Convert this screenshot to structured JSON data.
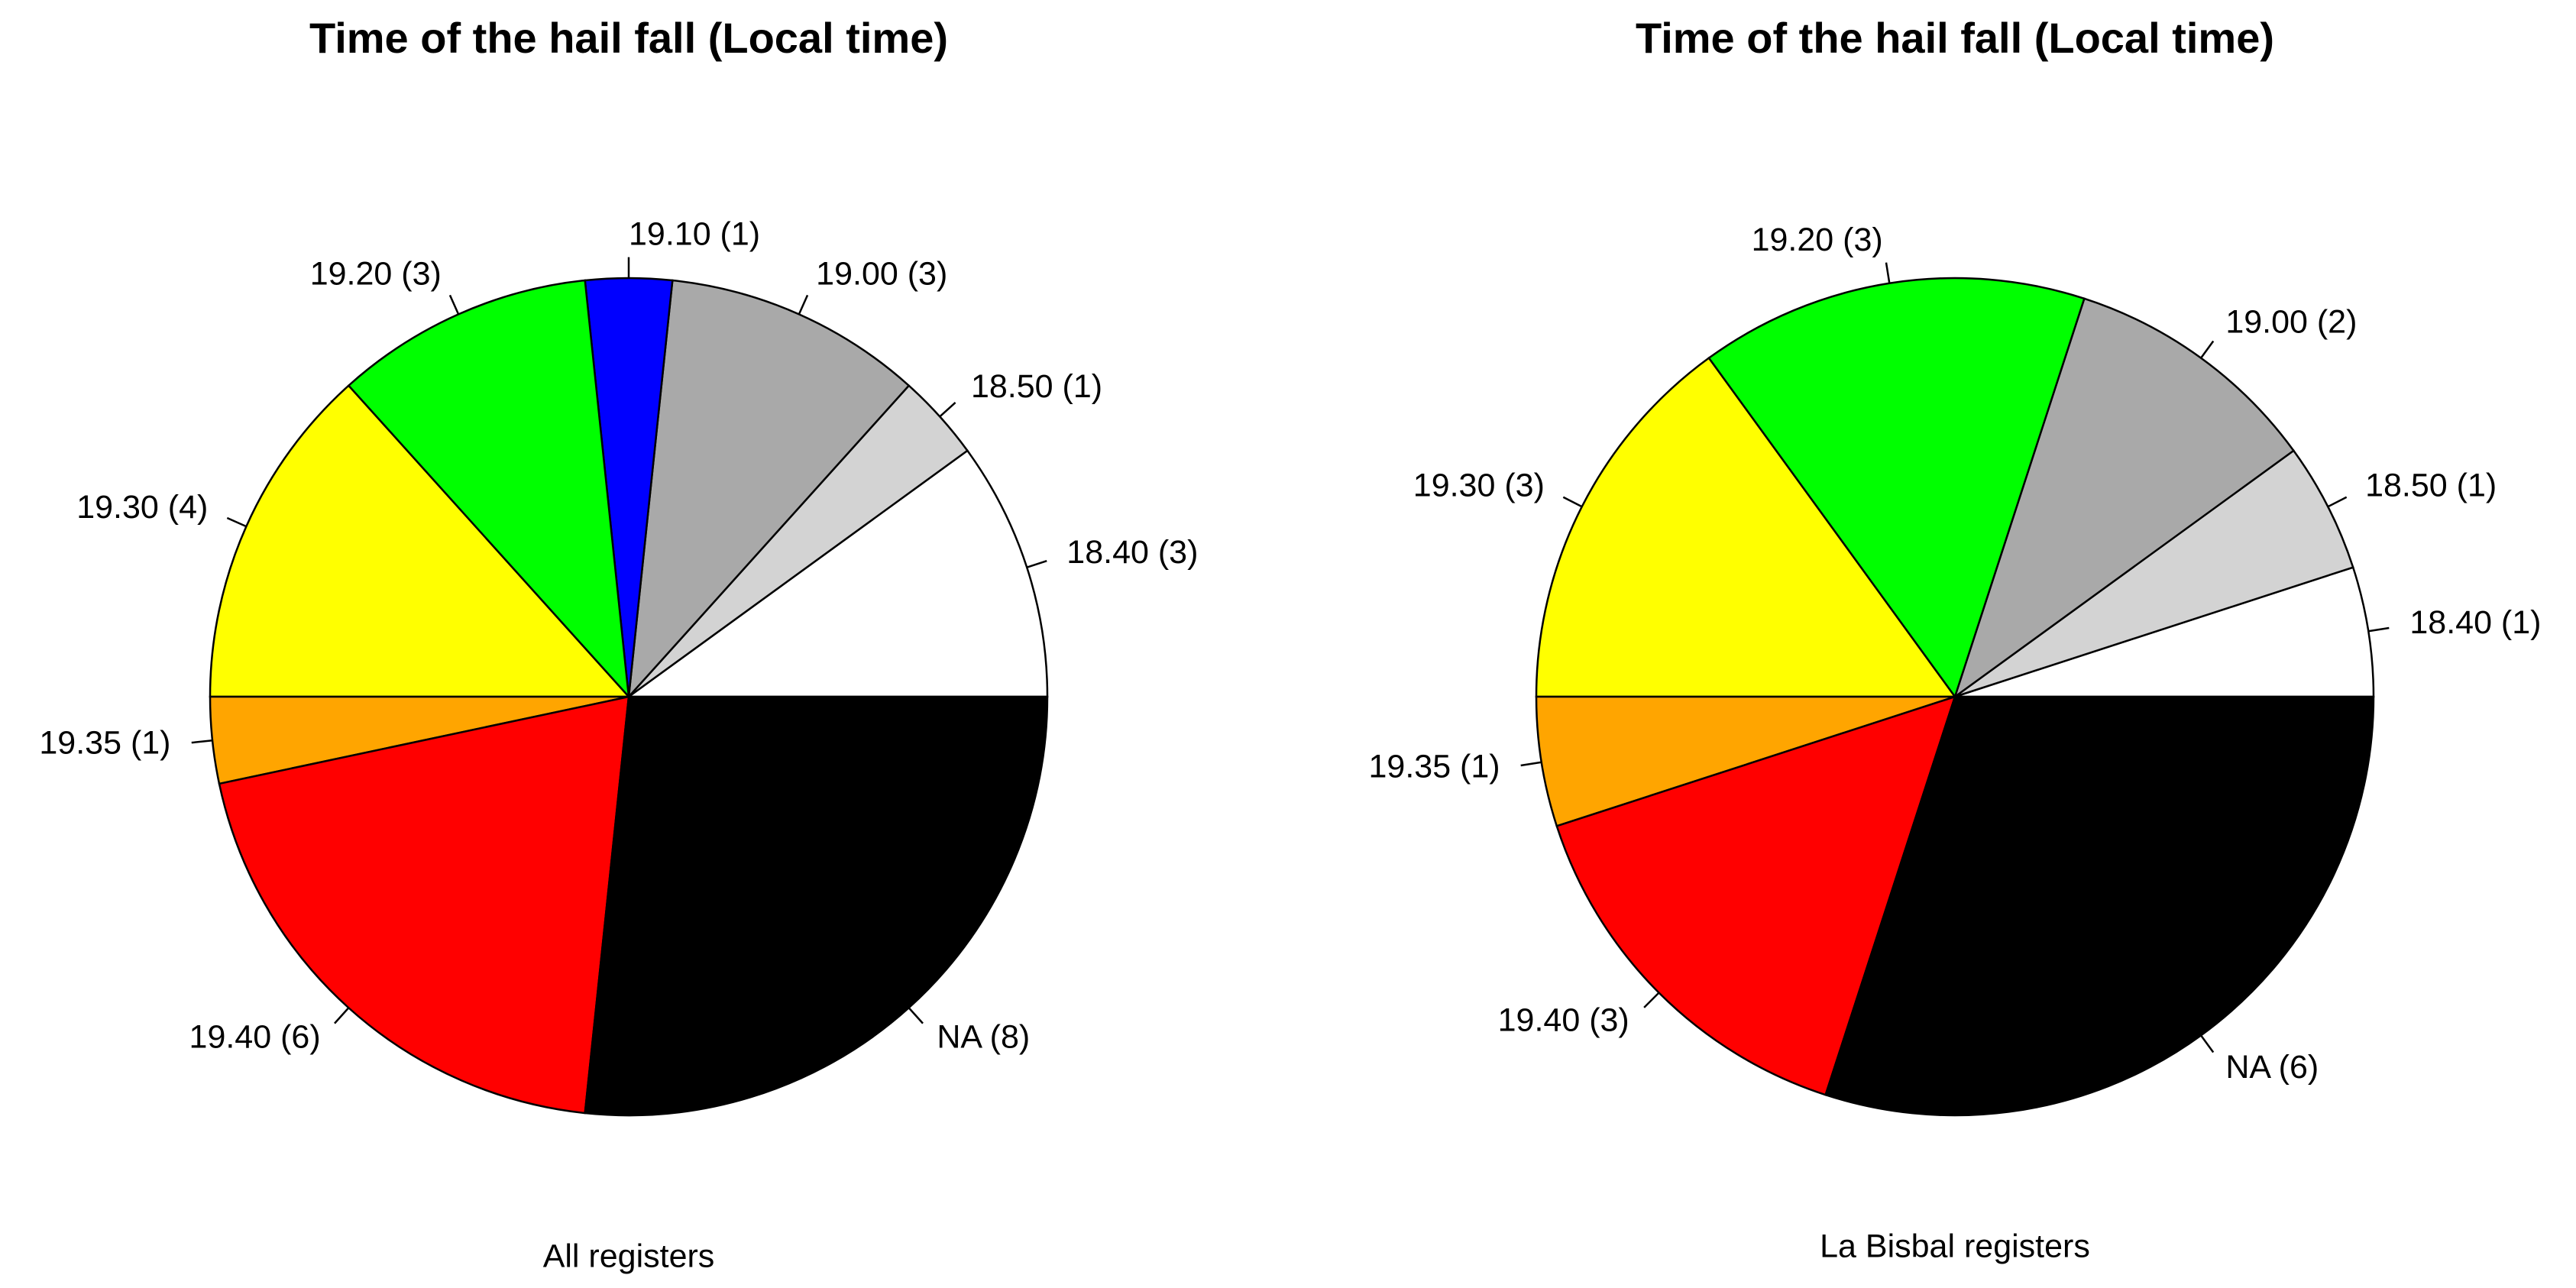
{
  "chart_data": [
    {
      "type": "pie",
      "title": "Time of the hail fall (Local time)",
      "subtitle": "All registers",
      "categories": [
        "18.40 (3)",
        "18.50 (1)",
        "19.00 (3)",
        "19.10 (1)",
        "19.20 (3)",
        "19.30 (4)",
        "19.35 (1)",
        "19.40 (6)",
        "NA (8)"
      ],
      "values": [
        3,
        1,
        3,
        1,
        3,
        4,
        1,
        6,
        8
      ],
      "colors": [
        "#ffffff",
        "#d3d3d3",
        "#a9a9a9",
        "#0000ff",
        "#00ff00",
        "#ffff00",
        "#ffa500",
        "#ff0000",
        "#000000"
      ]
    },
    {
      "type": "pie",
      "title": "Time of the hail fall (Local time)",
      "subtitle": "La Bisbal registers",
      "categories": [
        "18.40 (1)",
        "18.50 (1)",
        "19.00 (2)",
        "19.20 (3)",
        "19.30 (3)",
        "19.35 (1)",
        "19.40 (3)",
        "NA (6)"
      ],
      "values": [
        1,
        1,
        2,
        3,
        3,
        1,
        3,
        6
      ],
      "colors": [
        "#ffffff",
        "#d3d3d3",
        "#a9a9a9",
        "#00ff00",
        "#ffff00",
        "#ffa500",
        "#ff0000",
        "#000000"
      ]
    }
  ]
}
